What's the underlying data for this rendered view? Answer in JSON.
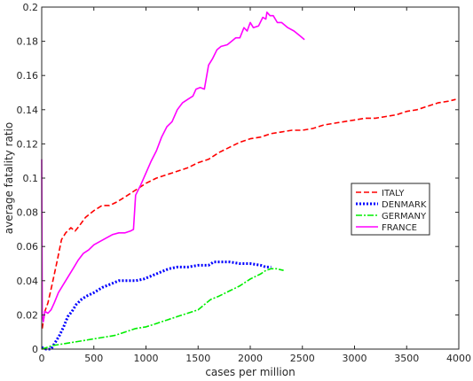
{
  "chart_data": {
    "type": "line",
    "title": "",
    "xlabel": "cases per million",
    "ylabel": "average fatality ratio",
    "xlim": [
      0,
      4000
    ],
    "ylim": [
      0,
      0.2
    ],
    "xticks": [
      0,
      500,
      1000,
      1500,
      2000,
      2500,
      3000,
      3500,
      4000
    ],
    "yticks": [
      0,
      0.02,
      0.04,
      0.06,
      0.08,
      0.1,
      0.12,
      0.14,
      0.16,
      0.18,
      0.2
    ],
    "grid": false,
    "legend_position": "right-middle",
    "series": [
      {
        "name": "ITALY",
        "color": "#ff0000",
        "style": "dashed",
        "points": [
          [
            5,
            0.012
          ],
          [
            30,
            0.022
          ],
          [
            60,
            0.027
          ],
          [
            100,
            0.038
          ],
          [
            150,
            0.052
          ],
          [
            190,
            0.064
          ],
          [
            230,
            0.068
          ],
          [
            280,
            0.071
          ],
          [
            320,
            0.069
          ],
          [
            360,
            0.072
          ],
          [
            420,
            0.077
          ],
          [
            500,
            0.081
          ],
          [
            580,
            0.084
          ],
          [
            650,
            0.084
          ],
          [
            720,
            0.086
          ],
          [
            800,
            0.089
          ],
          [
            900,
            0.093
          ],
          [
            1000,
            0.097
          ],
          [
            1100,
            0.1
          ],
          [
            1200,
            0.102
          ],
          [
            1300,
            0.104
          ],
          [
            1400,
            0.106
          ],
          [
            1500,
            0.109
          ],
          [
            1600,
            0.111
          ],
          [
            1700,
            0.115
          ],
          [
            1800,
            0.118
          ],
          [
            1900,
            0.121
          ],
          [
            2000,
            0.123
          ],
          [
            2100,
            0.124
          ],
          [
            2200,
            0.126
          ],
          [
            2300,
            0.127
          ],
          [
            2400,
            0.128
          ],
          [
            2500,
            0.128
          ],
          [
            2600,
            0.129
          ],
          [
            2700,
            0.131
          ],
          [
            2800,
            0.132
          ],
          [
            2900,
            0.133
          ],
          [
            3000,
            0.134
          ],
          [
            3100,
            0.135
          ],
          [
            3200,
            0.135
          ],
          [
            3300,
            0.136
          ],
          [
            3400,
            0.137
          ],
          [
            3500,
            0.139
          ],
          [
            3600,
            0.14
          ],
          [
            3700,
            0.142
          ],
          [
            3800,
            0.144
          ],
          [
            3900,
            0.145
          ],
          [
            3970,
            0.146
          ]
        ]
      },
      {
        "name": "DENMARK",
        "color": "#0000ff",
        "style": "dotted",
        "points": [
          [
            0,
            0.001
          ],
          [
            40,
            0.0
          ],
          [
            90,
            0.0
          ],
          [
            130,
            0.004
          ],
          [
            170,
            0.008
          ],
          [
            210,
            0.013
          ],
          [
            250,
            0.019
          ],
          [
            290,
            0.022
          ],
          [
            330,
            0.026
          ],
          [
            380,
            0.029
          ],
          [
            430,
            0.031
          ],
          [
            500,
            0.033
          ],
          [
            580,
            0.036
          ],
          [
            660,
            0.038
          ],
          [
            740,
            0.04
          ],
          [
            820,
            0.04
          ],
          [
            900,
            0.04
          ],
          [
            980,
            0.041
          ],
          [
            1060,
            0.043
          ],
          [
            1140,
            0.045
          ],
          [
            1220,
            0.047
          ],
          [
            1300,
            0.048
          ],
          [
            1400,
            0.048
          ],
          [
            1500,
            0.049
          ],
          [
            1600,
            0.049
          ],
          [
            1650,
            0.051
          ],
          [
            1700,
            0.051
          ],
          [
            1800,
            0.051
          ],
          [
            1900,
            0.05
          ],
          [
            2000,
            0.05
          ],
          [
            2100,
            0.049
          ],
          [
            2150,
            0.048
          ],
          [
            2200,
            0.048
          ]
        ]
      },
      {
        "name": "GERMANY",
        "color": "#00ee00",
        "style": "dashdot",
        "points": [
          [
            0,
            0.0
          ],
          [
            50,
            0.001
          ],
          [
            100,
            0.002
          ],
          [
            200,
            0.003
          ],
          [
            300,
            0.004
          ],
          [
            400,
            0.005
          ],
          [
            500,
            0.006
          ],
          [
            600,
            0.007
          ],
          [
            700,
            0.008
          ],
          [
            800,
            0.01
          ],
          [
            900,
            0.012
          ],
          [
            1000,
            0.013
          ],
          [
            1100,
            0.015
          ],
          [
            1200,
            0.017
          ],
          [
            1300,
            0.019
          ],
          [
            1400,
            0.021
          ],
          [
            1500,
            0.023
          ],
          [
            1560,
            0.026
          ],
          [
            1620,
            0.029
          ],
          [
            1700,
            0.031
          ],
          [
            1800,
            0.034
          ],
          [
            1900,
            0.037
          ],
          [
            2000,
            0.041
          ],
          [
            2100,
            0.044
          ],
          [
            2150,
            0.046
          ],
          [
            2200,
            0.047
          ],
          [
            2250,
            0.047
          ],
          [
            2320,
            0.046
          ]
        ]
      },
      {
        "name": "FRANCE",
        "color": "#ff00ff",
        "style": "solid",
        "points": [
          [
            0,
            0.111
          ],
          [
            5,
            0.02
          ],
          [
            15,
            0.016
          ],
          [
            30,
            0.022
          ],
          [
            60,
            0.021
          ],
          [
            90,
            0.023
          ],
          [
            120,
            0.027
          ],
          [
            160,
            0.033
          ],
          [
            200,
            0.037
          ],
          [
            250,
            0.042
          ],
          [
            300,
            0.047
          ],
          [
            350,
            0.052
          ],
          [
            400,
            0.056
          ],
          [
            450,
            0.058
          ],
          [
            500,
            0.061
          ],
          [
            560,
            0.063
          ],
          [
            620,
            0.065
          ],
          [
            680,
            0.067
          ],
          [
            740,
            0.068
          ],
          [
            800,
            0.068
          ],
          [
            850,
            0.069
          ],
          [
            880,
            0.07
          ],
          [
            900,
            0.09
          ],
          [
            950,
            0.096
          ],
          [
            1000,
            0.103
          ],
          [
            1050,
            0.11
          ],
          [
            1100,
            0.116
          ],
          [
            1150,
            0.124
          ],
          [
            1200,
            0.13
          ],
          [
            1250,
            0.133
          ],
          [
            1300,
            0.14
          ],
          [
            1350,
            0.144
          ],
          [
            1400,
            0.146
          ],
          [
            1450,
            0.148
          ],
          [
            1480,
            0.152
          ],
          [
            1520,
            0.153
          ],
          [
            1560,
            0.152
          ],
          [
            1600,
            0.166
          ],
          [
            1640,
            0.17
          ],
          [
            1680,
            0.175
          ],
          [
            1720,
            0.177
          ],
          [
            1780,
            0.178
          ],
          [
            1820,
            0.18
          ],
          [
            1860,
            0.182
          ],
          [
            1900,
            0.182
          ],
          [
            1940,
            0.188
          ],
          [
            1970,
            0.186
          ],
          [
            2000,
            0.191
          ],
          [
            2030,
            0.188
          ],
          [
            2080,
            0.189
          ],
          [
            2120,
            0.194
          ],
          [
            2150,
            0.193
          ],
          [
            2160,
            0.197
          ],
          [
            2190,
            0.195
          ],
          [
            2220,
            0.195
          ],
          [
            2260,
            0.191
          ],
          [
            2300,
            0.191
          ],
          [
            2360,
            0.188
          ],
          [
            2420,
            0.186
          ],
          [
            2480,
            0.183
          ],
          [
            2520,
            0.181
          ]
        ]
      }
    ]
  }
}
